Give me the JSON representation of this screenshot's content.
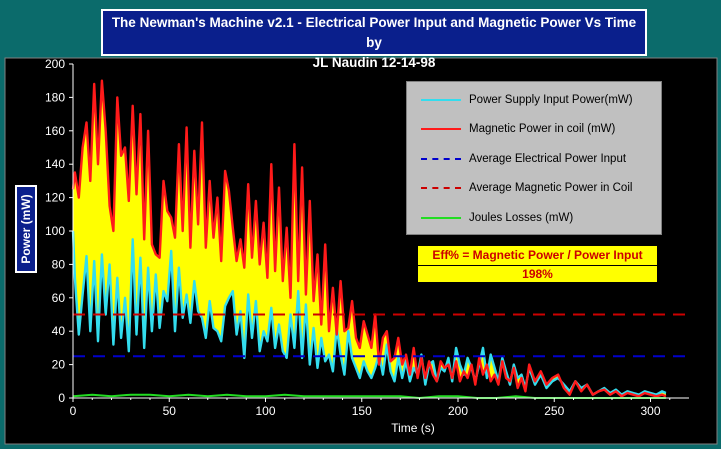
{
  "chart_data": {
    "type": "line",
    "title": "The Newman's Machine v2.1 - Electrical Power Input and Magnetic Power Vs Time by",
    "title_line2": "JL Naudin 12-14-98",
    "xlabel": "Time (s)",
    "ylabel": "Power (mW)",
    "xlim": [
      0,
      320
    ],
    "ylim": [
      0,
      200
    ],
    "x_ticks": [
      0,
      50,
      100,
      150,
      200,
      250,
      300
    ],
    "y_ticks": [
      0,
      20,
      40,
      60,
      80,
      100,
      120,
      140,
      160,
      180,
      200
    ],
    "grid": false,
    "legend_position": "top-right",
    "fill_between": {
      "upper": "Magnetic Power in coil (mW)",
      "lower": "Power Supply Input Power(mW)",
      "color": "#ffff00"
    },
    "series": [
      {
        "name": "Power Supply Input Power(mW)",
        "color": "#33ddee",
        "style": "solid",
        "x": [
          0,
          1,
          3,
          5,
          7,
          9,
          11,
          13,
          15,
          17,
          19,
          21,
          23,
          25,
          27,
          29,
          31,
          33,
          35,
          37,
          39,
          41,
          43,
          45,
          47,
          49,
          51,
          53,
          55,
          57,
          59,
          61,
          63,
          65,
          67,
          69,
          71,
          73,
          75,
          77,
          79,
          81,
          83,
          85,
          87,
          89,
          91,
          93,
          95,
          97,
          99,
          101,
          103,
          105,
          107,
          109,
          111,
          113,
          115,
          117,
          119,
          121,
          123,
          125,
          127,
          129,
          131,
          133,
          135,
          137,
          139,
          141,
          143,
          145,
          147,
          149,
          151,
          153,
          155,
          157,
          159,
          161,
          163,
          165,
          167,
          169,
          171,
          173,
          175,
          177,
          179,
          181,
          183,
          185,
          187,
          189,
          191,
          193,
          195,
          197,
          199,
          201,
          203,
          205,
          207,
          209,
          211,
          213,
          215,
          217,
          219,
          221,
          223,
          225,
          227,
          229,
          231,
          233,
          235,
          237,
          240,
          243,
          246,
          249,
          252,
          255,
          258,
          261,
          264,
          267,
          270,
          273,
          276,
          279,
          282,
          285,
          288,
          291,
          294,
          297,
          300,
          303,
          306,
          308
        ],
        "values": [
          100,
          72,
          38,
          62,
          85,
          40,
          82,
          34,
          86,
          50,
          80,
          32,
          72,
          36,
          60,
          28,
          95,
          38,
          84,
          30,
          78,
          40,
          74,
          42,
          64,
          58,
          88,
          40,
          78,
          48,
          62,
          45,
          70,
          52,
          48,
          36,
          58,
          42,
          40,
          34,
          55,
          60,
          64,
          38,
          52,
          24,
          62,
          36,
          58,
          28,
          40,
          34,
          54,
          30,
          44,
          28,
          24,
          50,
          30,
          64,
          24,
          56,
          20,
          42,
          18,
          36,
          22,
          26,
          16,
          42,
          26,
          14,
          40,
          24,
          18,
          12,
          22,
          16,
          12,
          18,
          26,
          14,
          32,
          16,
          10,
          24,
          12,
          22,
          10,
          18,
          14,
          26,
          8,
          20,
          22,
          10,
          18,
          16,
          24,
          10,
          30,
          20,
          14,
          24,
          18,
          10,
          20,
          30,
          12,
          26,
          18,
          10,
          24,
          16,
          8,
          20,
          12,
          14,
          6,
          18,
          8,
          14,
          6,
          10,
          12,
          8,
          4,
          10,
          6,
          8,
          2,
          4,
          6,
          3,
          5,
          2,
          4,
          3,
          2,
          4,
          3,
          2,
          4,
          3
        ]
      },
      {
        "name": "Magnetic Power in coil (mW)",
        "color": "#ff1a1a",
        "style": "solid",
        "x": [
          0,
          1,
          3,
          5,
          7,
          9,
          11,
          13,
          15,
          17,
          19,
          21,
          23,
          25,
          27,
          29,
          31,
          33,
          35,
          37,
          39,
          41,
          43,
          45,
          47,
          49,
          51,
          53,
          55,
          57,
          59,
          61,
          63,
          65,
          67,
          69,
          71,
          73,
          75,
          77,
          79,
          81,
          83,
          85,
          87,
          89,
          91,
          93,
          95,
          97,
          99,
          101,
          103,
          105,
          107,
          109,
          111,
          113,
          115,
          117,
          119,
          121,
          123,
          125,
          127,
          129,
          131,
          133,
          135,
          137,
          139,
          141,
          143,
          145,
          147,
          149,
          151,
          153,
          155,
          157,
          159,
          161,
          163,
          165,
          167,
          169,
          171,
          173,
          175,
          177,
          179,
          181,
          183,
          185,
          187,
          189,
          191,
          193,
          195,
          197,
          199,
          201,
          203,
          205,
          207,
          209,
          211,
          213,
          215,
          217,
          219,
          221,
          223,
          225,
          227,
          229,
          231,
          233,
          235,
          237,
          240,
          243,
          246,
          249,
          252,
          255,
          258,
          261,
          264,
          267,
          270,
          273,
          276,
          279,
          282,
          285,
          288,
          291,
          294,
          297,
          300,
          303,
          306,
          308
        ],
        "values": [
          125,
          135,
          120,
          150,
          165,
          130,
          188,
          140,
          190,
          160,
          115,
          100,
          180,
          145,
          150,
          118,
          175,
          122,
          170,
          95,
          160,
          92,
          86,
          84,
          130,
          112,
          108,
          96,
          152,
          100,
          162,
          90,
          148,
          104,
          165,
          90,
          130,
          96,
          120,
          82,
          136,
          124,
          102,
          82,
          95,
          78,
          128,
          84,
          118,
          80,
          105,
          72,
          140,
          76,
          126,
          70,
          102,
          60,
          152,
          70,
          138,
          62,
          118,
          58,
          86,
          44,
          92,
          40,
          66,
          38,
          70,
          40,
          42,
          58,
          36,
          30,
          46,
          38,
          30,
          50,
          20,
          36,
          40,
          22,
          24,
          36,
          20,
          26,
          14,
          30,
          12,
          24,
          12,
          22,
          14,
          10,
          22,
          18,
          20,
          12,
          22,
          10,
          16,
          12,
          20,
          8,
          24,
          14,
          20,
          10,
          14,
          8,
          22,
          12,
          10,
          18,
          6,
          12,
          4,
          20,
          10,
          16,
          8,
          12,
          14,
          6,
          2,
          10,
          4,
          8,
          2,
          4,
          5,
          2,
          4,
          1,
          3,
          2,
          1,
          3,
          2,
          1,
          2,
          1
        ]
      },
      {
        "name": "Average Electrical Power Input",
        "color": "#0000cc",
        "style": "dashed",
        "x": [
          0,
          320
        ],
        "values": [
          25,
          25
        ]
      },
      {
        "name": "Average Magnetic Power in Coil",
        "color": "#cc0000",
        "style": "dashed",
        "x": [
          0,
          320
        ],
        "values": [
          50,
          50
        ]
      },
      {
        "name": "Joules Losses (mW)",
        "color": "#22dd22",
        "style": "solid",
        "x": [
          0,
          10,
          20,
          30,
          40,
          50,
          60,
          70,
          80,
          90,
          100,
          110,
          120,
          130,
          140,
          150,
          160,
          170,
          180,
          190,
          200,
          210,
          220,
          230,
          240,
          250,
          260,
          270,
          280,
          290,
          300,
          308
        ],
        "values": [
          1,
          2,
          1,
          2,
          2,
          1,
          2,
          1,
          2,
          1,
          1,
          2,
          1,
          1,
          1,
          1,
          1,
          1,
          0,
          1,
          1,
          0,
          0,
          1,
          0,
          0,
          0,
          0,
          0,
          0,
          0,
          0
        ]
      }
    ],
    "annotation": {
      "line1": "Eff% = Magnetic Power / Power Input",
      "line2": "198%"
    }
  },
  "colors": {
    "outer_background": "#0b6b6b",
    "plot_background": "#000000",
    "title_background": "#0a1f8c",
    "legend_background": "#c0c0c0",
    "fill": "#ffff00"
  }
}
